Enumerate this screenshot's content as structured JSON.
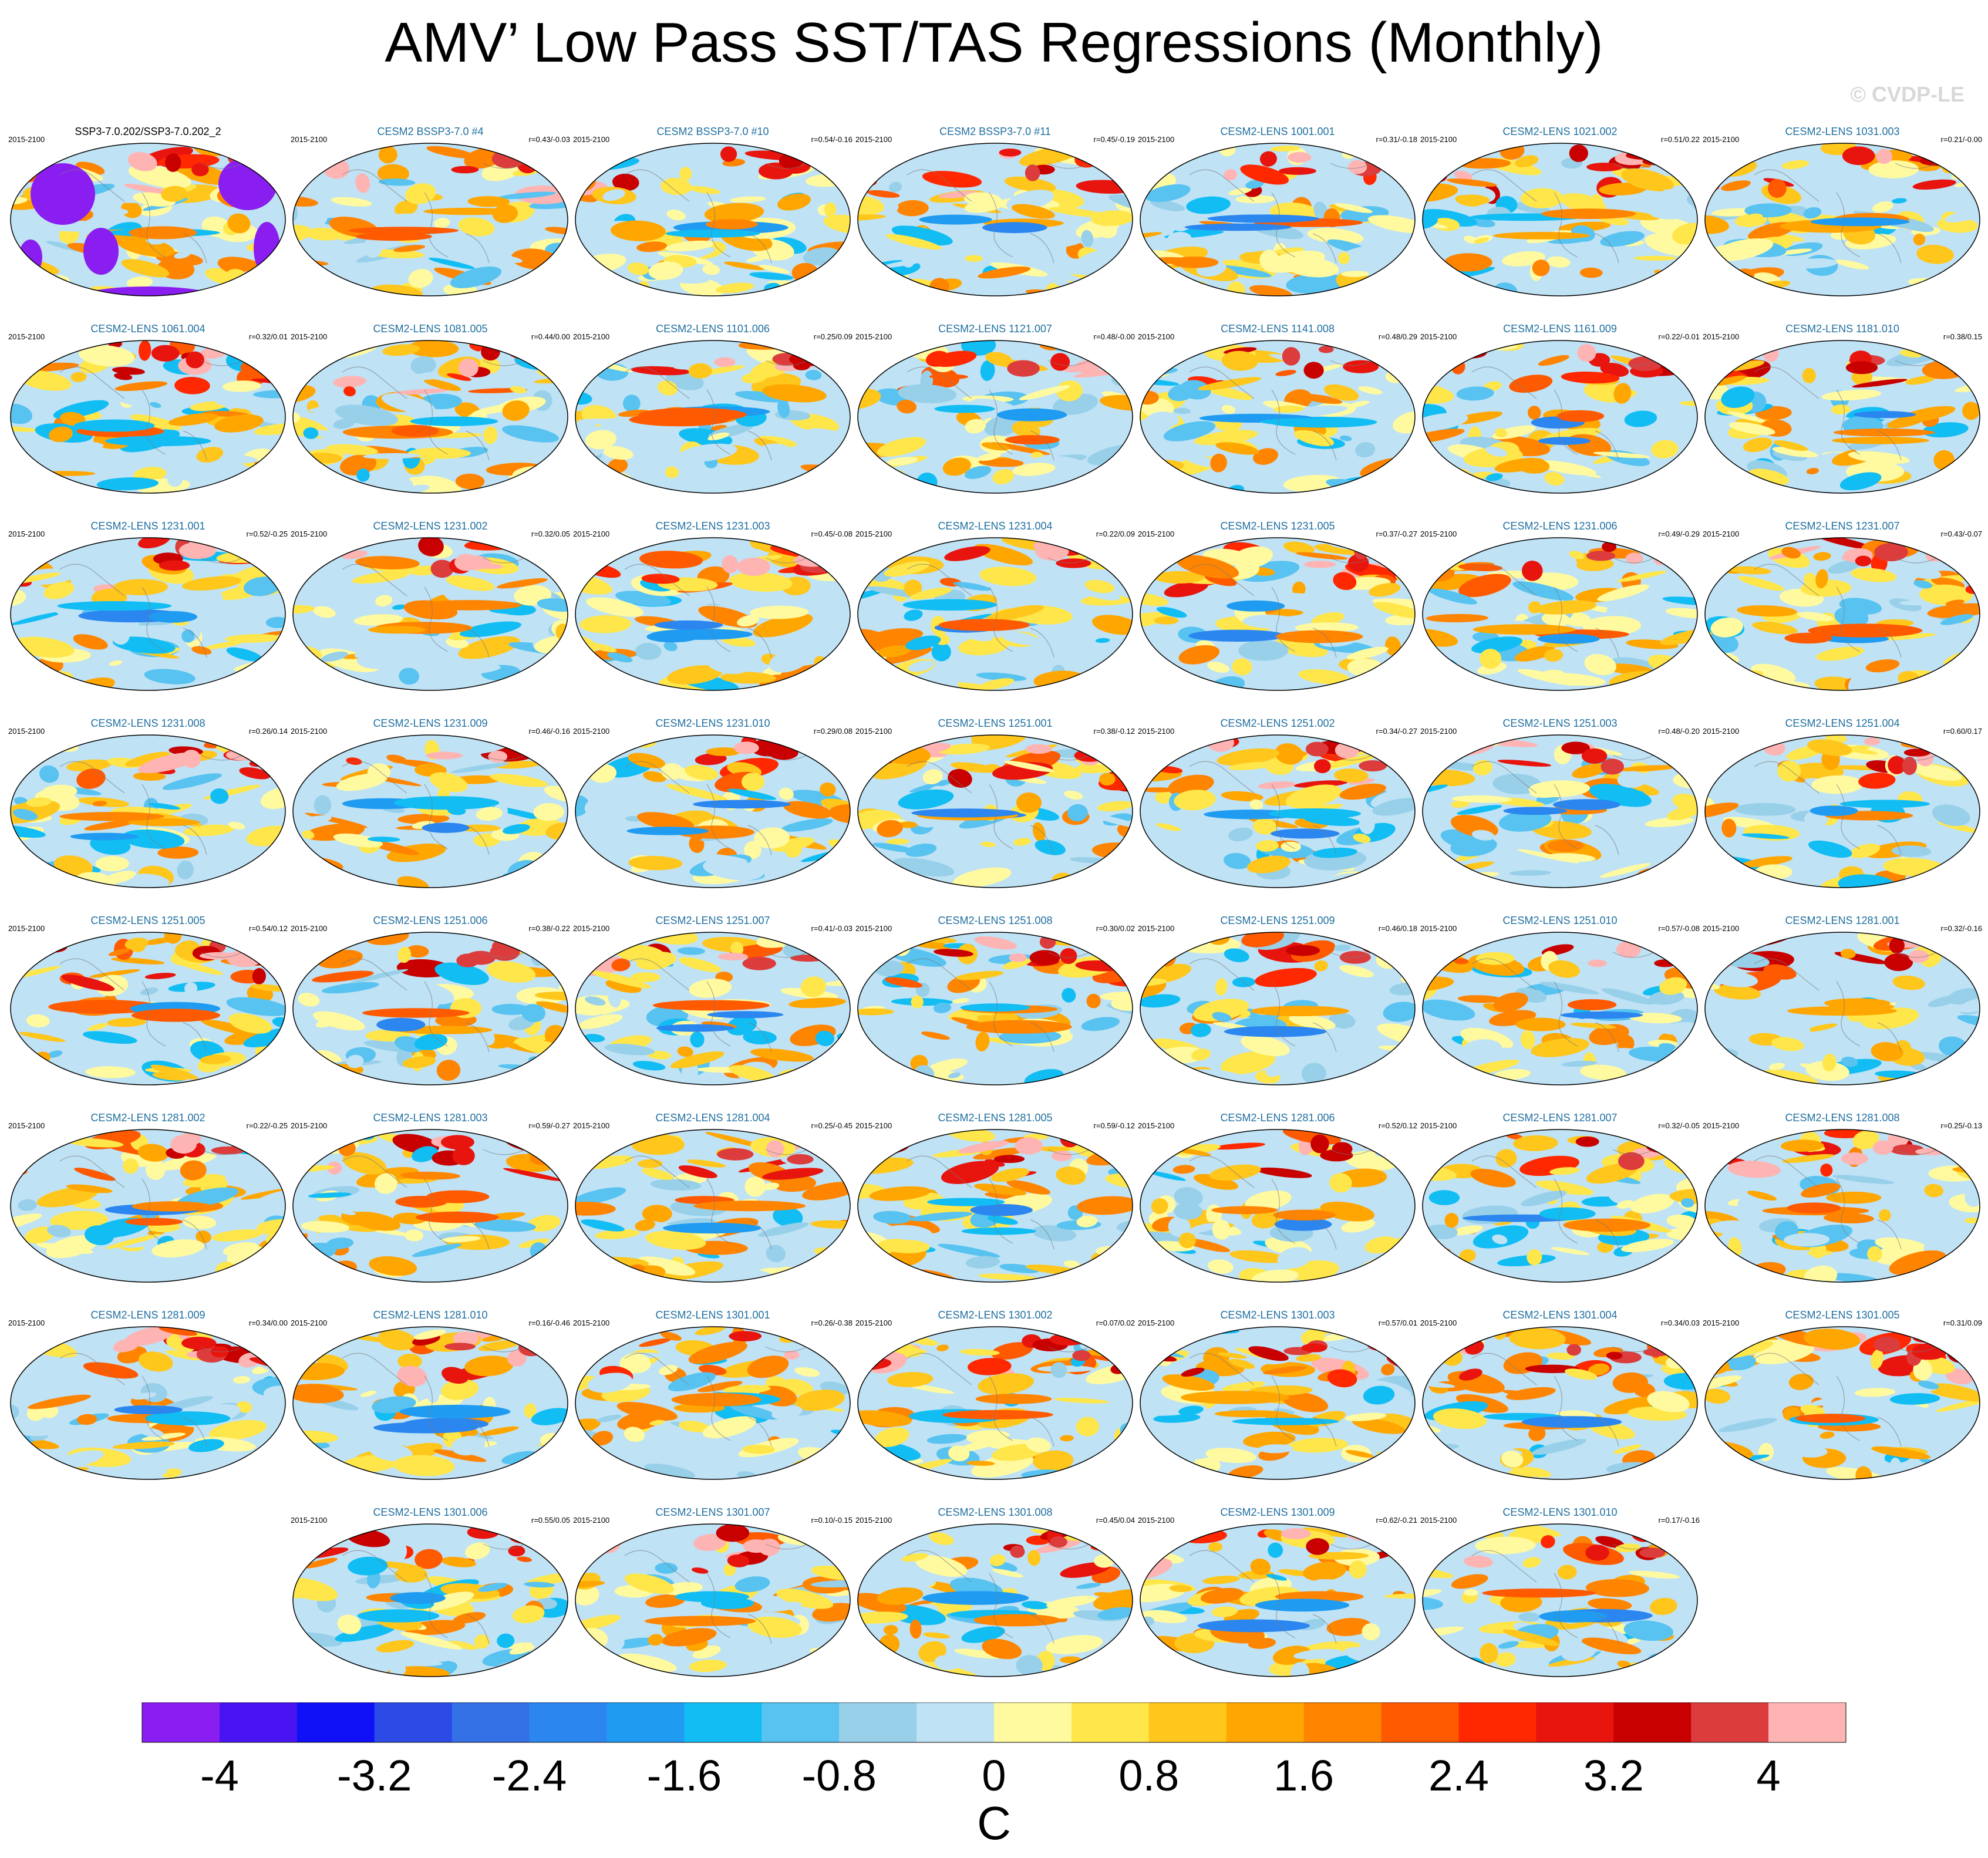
{
  "page": {
    "title": "AMV’ Low Pass SST/TAS Regressions (Monthly)",
    "watermark": "© CVDP-LE"
  },
  "chart_data": {
    "type": "map-grid",
    "title": "AMV’ Low Pass SST/TAS Regressions (Monthly)",
    "period": "2015-2100",
    "panels": [
      {
        "name": "SSP3-7.0.202/SSP3-7.0.202_2",
        "corr": "",
        "obs": true
      },
      {
        "name": "CESM2 BSSP3-7.0 #4",
        "corr": "r=0.43/-0.03"
      },
      {
        "name": "CESM2 BSSP3-7.0 #10",
        "corr": "r=0.54/-0.16"
      },
      {
        "name": "CESM2 BSSP3-7.0 #11",
        "corr": "r=0.45/-0.19"
      },
      {
        "name": "CESM2-LENS 1001.001",
        "corr": "r=0.31/-0.18"
      },
      {
        "name": "CESM2-LENS 1021.002",
        "corr": "r=0.51/0.22"
      },
      {
        "name": "CESM2-LENS 1031.003",
        "corr": "r=0.21/-0.00"
      },
      {
        "name": "CESM2-LENS 1061.004",
        "corr": "r=0.32/0.01"
      },
      {
        "name": "CESM2-LENS 1081.005",
        "corr": "r=0.44/0.00"
      },
      {
        "name": "CESM2-LENS 1101.006",
        "corr": "r=0.25/0.09"
      },
      {
        "name": "CESM2-LENS 1121.007",
        "corr": "r=0.48/-0.00"
      },
      {
        "name": "CESM2-LENS 1141.008",
        "corr": "r=0.48/0.29"
      },
      {
        "name": "CESM2-LENS 1161.009",
        "corr": "r=0.22/-0.01"
      },
      {
        "name": "CESM2-LENS 1181.010",
        "corr": "r=0.38/0.15"
      },
      {
        "name": "CESM2-LENS 1231.001",
        "corr": "r=0.52/-0.25"
      },
      {
        "name": "CESM2-LENS 1231.002",
        "corr": "r=0.32/0.05"
      },
      {
        "name": "CESM2-LENS 1231.003",
        "corr": "r=0.45/-0.08"
      },
      {
        "name": "CESM2-LENS 1231.004",
        "corr": "r=0.22/0.09"
      },
      {
        "name": "CESM2-LENS 1231.005",
        "corr": "r=0.37/-0.27"
      },
      {
        "name": "CESM2-LENS 1231.006",
        "corr": "r=0.49/-0.29"
      },
      {
        "name": "CESM2-LENS 1231.007",
        "corr": "r=0.43/-0.07"
      },
      {
        "name": "CESM2-LENS 1231.008",
        "corr": "r=0.26/0.14"
      },
      {
        "name": "CESM2-LENS 1231.009",
        "corr": "r=0.46/-0.16"
      },
      {
        "name": "CESM2-LENS 1231.010",
        "corr": "r=0.29/0.08"
      },
      {
        "name": "CESM2-LENS 1251.001",
        "corr": "r=0.38/-0.12"
      },
      {
        "name": "CESM2-LENS 1251.002",
        "corr": "r=0.34/-0.27"
      },
      {
        "name": "CESM2-LENS 1251.003",
        "corr": "r=0.48/-0.20"
      },
      {
        "name": "CESM2-LENS 1251.004",
        "corr": "r=0.60/0.17"
      },
      {
        "name": "CESM2-LENS 1251.005",
        "corr": "r=0.54/0.12"
      },
      {
        "name": "CESM2-LENS 1251.006",
        "corr": "r=0.38/-0.22"
      },
      {
        "name": "CESM2-LENS 1251.007",
        "corr": "r=0.41/-0.03"
      },
      {
        "name": "CESM2-LENS 1251.008",
        "corr": "r=0.30/0.02"
      },
      {
        "name": "CESM2-LENS 1251.009",
        "corr": "r=0.46/0.18"
      },
      {
        "name": "CESM2-LENS 1251.010",
        "corr": "r=0.57/-0.08"
      },
      {
        "name": "CESM2-LENS 1281.001",
        "corr": "r=0.32/-0.16"
      },
      {
        "name": "CESM2-LENS 1281.002",
        "corr": "r=0.22/-0.25"
      },
      {
        "name": "CESM2-LENS 1281.003",
        "corr": "r=0.59/-0.27"
      },
      {
        "name": "CESM2-LENS 1281.004",
        "corr": "r=0.25/-0.45"
      },
      {
        "name": "CESM2-LENS 1281.005",
        "corr": "r=0.59/-0.12"
      },
      {
        "name": "CESM2-LENS 1281.006",
        "corr": "r=0.52/0.12"
      },
      {
        "name": "CESM2-LENS 1281.007",
        "corr": "r=0.32/-0.05"
      },
      {
        "name": "CESM2-LENS 1281.008",
        "corr": "r=0.25/-0.13"
      },
      {
        "name": "CESM2-LENS 1281.009",
        "corr": "r=0.34/0.00"
      },
      {
        "name": "CESM2-LENS 1281.010",
        "corr": "r=0.16/-0.46"
      },
      {
        "name": "CESM2-LENS 1301.001",
        "corr": "r=0.26/-0.38"
      },
      {
        "name": "CESM2-LENS 1301.002",
        "corr": "r=0.07/0.02"
      },
      {
        "name": "CESM2-LENS 1301.003",
        "corr": "r=0.57/0.01"
      },
      {
        "name": "CESM2-LENS 1301.004",
        "corr": "r=0.34/0.03"
      },
      {
        "name": "CESM2-LENS 1301.005",
        "corr": "r=0.31/0.09"
      },
      {
        "name": "CESM2-LENS 1301.006",
        "corr": "r=0.55/0.05"
      },
      {
        "name": "CESM2-LENS 1301.007",
        "corr": "r=0.10/-0.15"
      },
      {
        "name": "CESM2-LENS 1301.008",
        "corr": "r=0.45/0.04"
      },
      {
        "name": "CESM2-LENS 1301.009",
        "corr": "r=0.62/-0.21"
      },
      {
        "name": "CESM2-LENS 1301.010",
        "corr": "r=0.17/-0.16"
      }
    ],
    "colorbar": {
      "unit": "C",
      "min": -4.4,
      "max": 4.4,
      "step": 0.4,
      "tick_labels": [
        "-4",
        "-3.2",
        "-2.4",
        "-1.6",
        "-0.8",
        "0",
        "0.8",
        "1.6",
        "2.4",
        "3.2",
        "4"
      ],
      "colors": [
        "#8a1ef0",
        "#4a14f2",
        "#1010f6",
        "#2c4be6",
        "#3470e6",
        "#2b86f0",
        "#1f9cf2",
        "#12bdf4",
        "#58c3f0",
        "#98d0ea",
        "#bfe2f5",
        "#fffaa0",
        "#ffe64a",
        "#ffc61c",
        "#ffa600",
        "#ff8400",
        "#ff5a00",
        "#ff2800",
        "#e8140e",
        "#c80000",
        "#dc3c3c",
        "#ffb4b4"
      ]
    }
  }
}
